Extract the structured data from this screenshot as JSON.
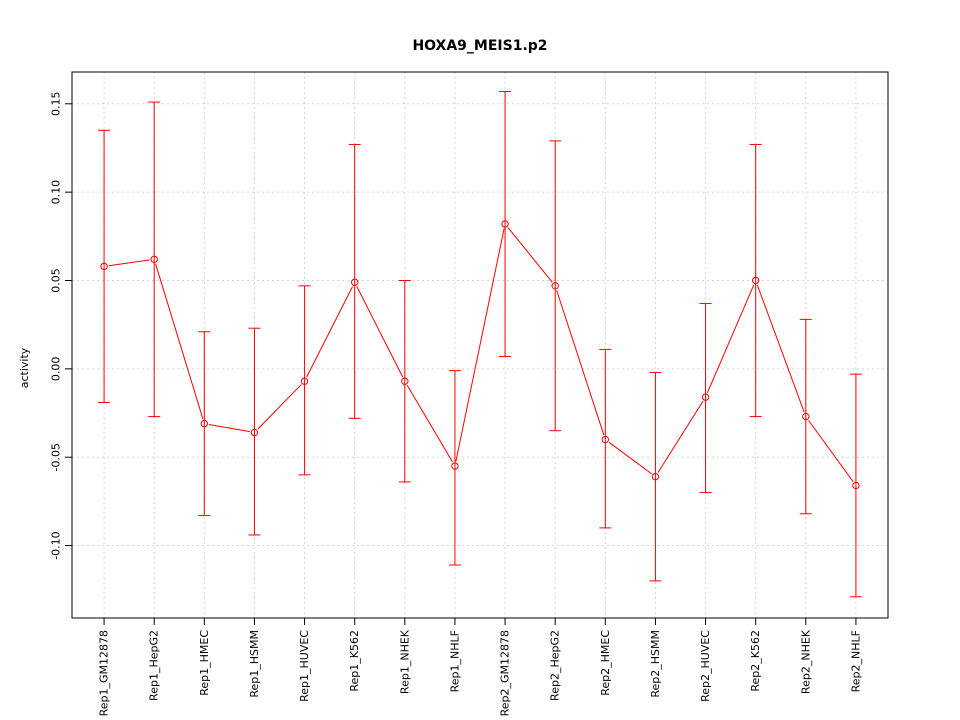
{
  "chart_data": {
    "type": "line",
    "title": "HOXA9_MEIS1.p2",
    "xlabel": "",
    "ylabel": "activity",
    "categories": [
      "Rep1_GM12878",
      "Rep1_HepG2",
      "Rep1_HMEC",
      "Rep1_HSMM",
      "Rep1_HUVEC",
      "Rep1_K562",
      "Rep1_NHEK",
      "Rep1_NHLF",
      "Rep2_GM12878",
      "Rep2_HepG2",
      "Rep2_HMEC",
      "Rep2_HSMM",
      "Rep2_HUVEC",
      "Rep2_K562",
      "Rep2_NHEK",
      "Rep2_NHLF"
    ],
    "series": [
      {
        "values": [
          0.058,
          0.062,
          -0.031,
          -0.036,
          -0.007,
          0.049,
          -0.007,
          -0.055,
          0.082,
          0.047,
          -0.04,
          -0.061,
          -0.016,
          0.05,
          -0.027,
          -0.066
        ],
        "upper": [
          0.135,
          0.151,
          0.021,
          0.023,
          0.047,
          0.127,
          0.05,
          -0.001,
          0.157,
          0.129,
          0.011,
          -0.002,
          0.037,
          0.127,
          0.028,
          -0.003
        ],
        "lower": [
          -0.019,
          -0.027,
          -0.083,
          -0.094,
          -0.06,
          -0.028,
          -0.064,
          -0.111,
          0.007,
          -0.035,
          -0.09,
          -0.12,
          -0.07,
          -0.027,
          -0.082,
          -0.129
        ]
      }
    ],
    "yticks": [
      -0.1,
      -0.05,
      0.0,
      0.05,
      0.1,
      0.15
    ],
    "ytick_labels": [
      "-0.10",
      "-0.05",
      "0.00",
      "0.05",
      "0.10",
      "0.15"
    ],
    "ylim": [
      -0.141,
      0.168
    ],
    "grid": true,
    "colors": {
      "series": "#ff0000",
      "grid": "#d3d3d3",
      "axis": "#000000"
    }
  }
}
